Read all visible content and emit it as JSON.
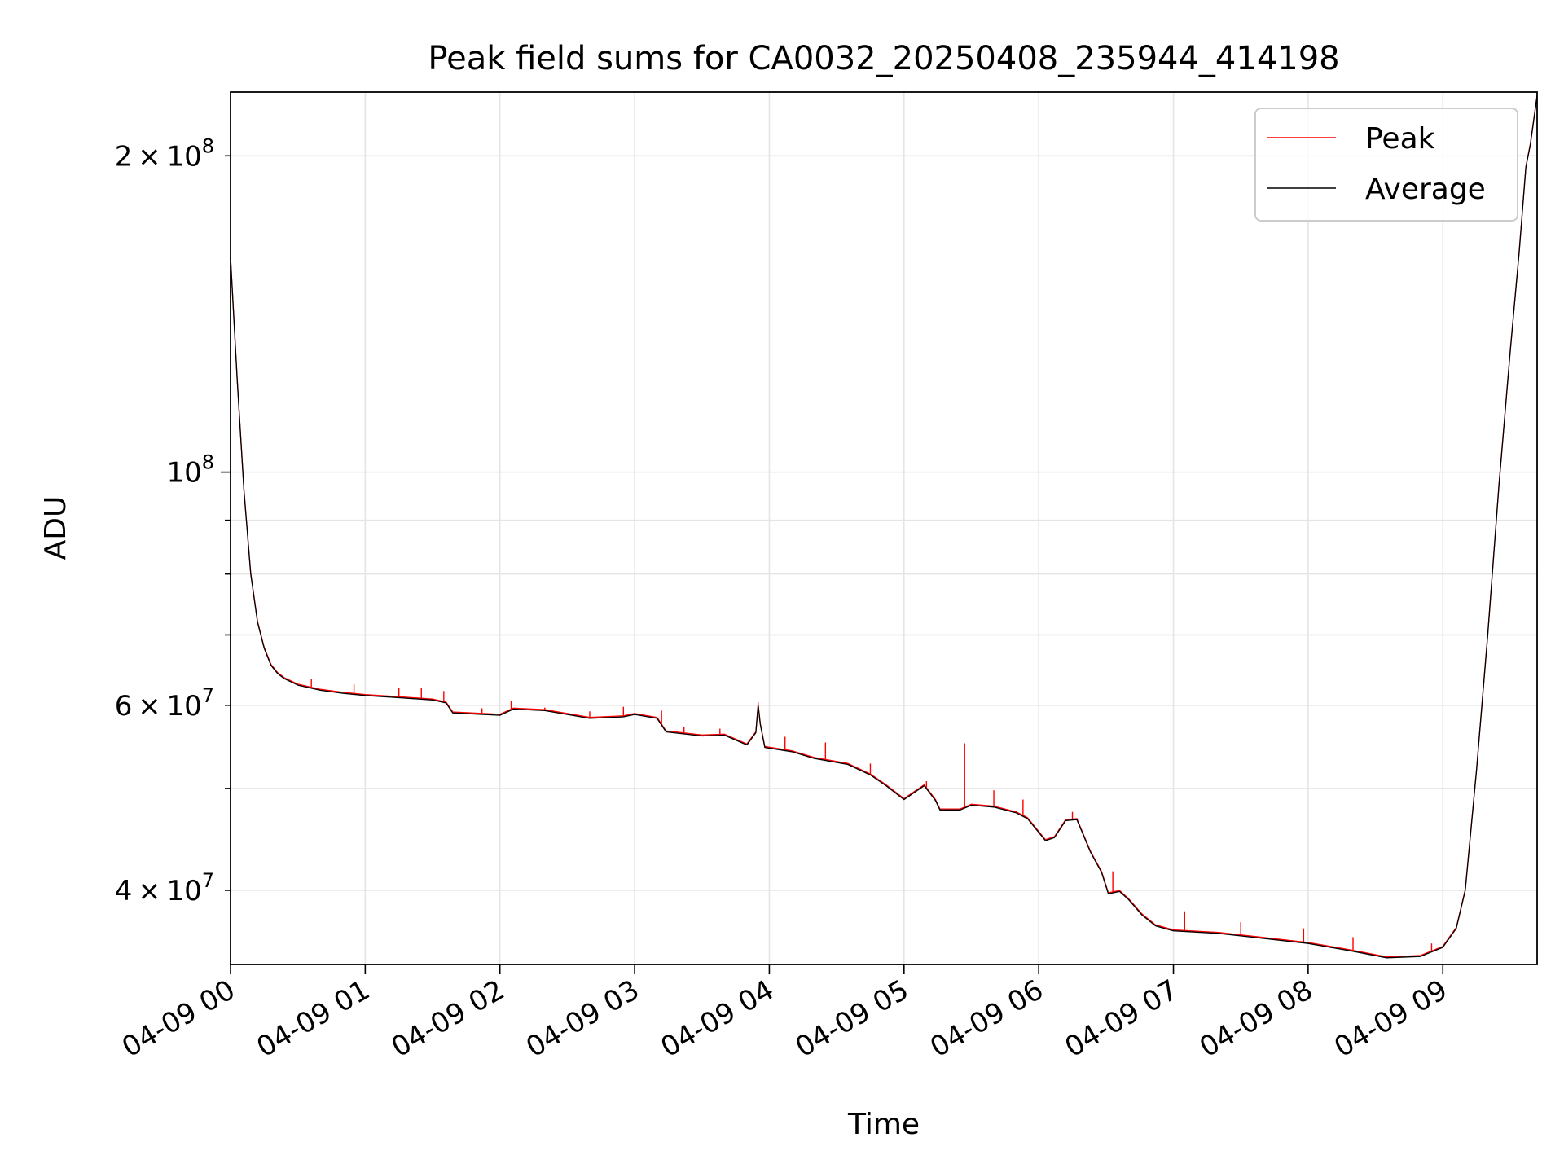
{
  "chart_data": {
    "type": "line",
    "title": "Peak field sums for CA0032_20250408_235944_414198",
    "xlabel": "Time",
    "ylabel": "ADU",
    "x_axis": {
      "type": "datetime",
      "xlim": [
        "2025-04-09T00:00:00",
        "2025-04-09T09:42:00"
      ],
      "ticks": [
        {
          "value": "2025-04-09T00:00:00",
          "label": "04-09 00"
        },
        {
          "value": "2025-04-09T01:00:00",
          "label": "04-09 01"
        },
        {
          "value": "2025-04-09T02:00:00",
          "label": "04-09 02"
        },
        {
          "value": "2025-04-09T03:00:00",
          "label": "04-09 03"
        },
        {
          "value": "2025-04-09T04:00:00",
          "label": "04-09 04"
        },
        {
          "value": "2025-04-09T05:00:00",
          "label": "04-09 05"
        },
        {
          "value": "2025-04-09T06:00:00",
          "label": "04-09 06"
        },
        {
          "value": "2025-04-09T07:00:00",
          "label": "04-09 07"
        },
        {
          "value": "2025-04-09T08:00:00",
          "label": "04-09 08"
        },
        {
          "value": "2025-04-09T09:00:00",
          "label": "04-09 09"
        }
      ]
    },
    "y_axis": {
      "scale": "log",
      "ylim": [
        34000000,
        230000000
      ],
      "major_ticks": [
        {
          "value": 100000000,
          "mant": "",
          "base": "10",
          "exp": "8"
        }
      ],
      "minor_labeled_ticks": [
        {
          "value": 40000000,
          "mant": "4",
          "base": "10",
          "exp": "7"
        },
        {
          "value": 60000000,
          "mant": "6",
          "base": "10",
          "exp": "7"
        },
        {
          "value": 200000000,
          "mant": "2",
          "base": "10",
          "exp": "8"
        }
      ],
      "minor_unlabeled_ticks": [
        50000000,
        70000000,
        80000000,
        90000000
      ]
    },
    "grid": true,
    "legend": {
      "placement": "top-right",
      "entries": [
        {
          "label": "Peak",
          "color": "#ff0000"
        },
        {
          "label": "Average",
          "color": "#000000"
        }
      ]
    },
    "series": [
      {
        "name": "Average",
        "color": "#000000",
        "points": [
          [
            "2025-04-09T00:00:00",
            160000000
          ],
          [
            "2025-04-09T00:03:00",
            122000000
          ],
          [
            "2025-04-09T00:06:00",
            96000000
          ],
          [
            "2025-04-09T00:09:00",
            80000000
          ],
          [
            "2025-04-09T00:12:00",
            72000000
          ],
          [
            "2025-04-09T00:15:00",
            68000000
          ],
          [
            "2025-04-09T00:18:00",
            65500000
          ],
          [
            "2025-04-09T00:21:00",
            64300000
          ],
          [
            "2025-04-09T00:24:00",
            63600000
          ],
          [
            "2025-04-09T00:30:00",
            62700000
          ],
          [
            "2025-04-09T00:40:00",
            62000000
          ],
          [
            "2025-04-09T00:50:00",
            61600000
          ],
          [
            "2025-04-09T01:00:00",
            61300000
          ],
          [
            "2025-04-09T01:15:00",
            61000000
          ],
          [
            "2025-04-09T01:30:00",
            60700000
          ],
          [
            "2025-04-09T01:36:00",
            60300000
          ],
          [
            "2025-04-09T01:39:00",
            59000000
          ],
          [
            "2025-04-09T02:00:00",
            58700000
          ],
          [
            "2025-04-09T02:06:00",
            59500000
          ],
          [
            "2025-04-09T02:20:00",
            59300000
          ],
          [
            "2025-04-09T02:40:00",
            58300000
          ],
          [
            "2025-04-09T02:55:00",
            58500000
          ],
          [
            "2025-04-09T03:00:00",
            58800000
          ],
          [
            "2025-04-09T03:10:00",
            58300000
          ],
          [
            "2025-04-09T03:14:00",
            56600000
          ],
          [
            "2025-04-09T03:30:00",
            56100000
          ],
          [
            "2025-04-09T03:40:00",
            56200000
          ],
          [
            "2025-04-09T03:50:00",
            55000000
          ],
          [
            "2025-04-09T03:54:00",
            56500000
          ],
          [
            "2025-04-09T03:55:00",
            60000000
          ],
          [
            "2025-04-09T03:56:00",
            57500000
          ],
          [
            "2025-04-09T03:58:00",
            54700000
          ],
          [
            "2025-04-09T04:10:00",
            54200000
          ],
          [
            "2025-04-09T04:20:00",
            53400000
          ],
          [
            "2025-04-09T04:35:00",
            52700000
          ],
          [
            "2025-04-09T04:45:00",
            51500000
          ],
          [
            "2025-04-09T04:52:00",
            50300000
          ],
          [
            "2025-04-09T05:00:00",
            48800000
          ],
          [
            "2025-04-09T05:06:00",
            49800000
          ],
          [
            "2025-04-09T05:09:00",
            50300000
          ],
          [
            "2025-04-09T05:14:00",
            48700000
          ],
          [
            "2025-04-09T05:16:00",
            47700000
          ],
          [
            "2025-04-09T05:25:00",
            47700000
          ],
          [
            "2025-04-09T05:30:00",
            48200000
          ],
          [
            "2025-04-09T05:40:00",
            48000000
          ],
          [
            "2025-04-09T05:50:00",
            47400000
          ],
          [
            "2025-04-09T05:55:00",
            46800000
          ],
          [
            "2025-04-09T06:03:00",
            44600000
          ],
          [
            "2025-04-09T06:07:00",
            44900000
          ],
          [
            "2025-04-09T06:12:00",
            46600000
          ],
          [
            "2025-04-09T06:17:00",
            46700000
          ],
          [
            "2025-04-09T06:23:00",
            43500000
          ],
          [
            "2025-04-09T06:28:00",
            41600000
          ],
          [
            "2025-04-09T06:31:00",
            39700000
          ],
          [
            "2025-04-09T06:36:00",
            39900000
          ],
          [
            "2025-04-09T06:40:00",
            39200000
          ],
          [
            "2025-04-09T06:46:00",
            37900000
          ],
          [
            "2025-04-09T06:52:00",
            37000000
          ],
          [
            "2025-04-09T07:00:00",
            36600000
          ],
          [
            "2025-04-09T07:20:00",
            36400000
          ],
          [
            "2025-04-09T07:40:00",
            36000000
          ],
          [
            "2025-04-09T08:00:00",
            35600000
          ],
          [
            "2025-04-09T08:20:00",
            35000000
          ],
          [
            "2025-04-09T08:35:00",
            34500000
          ],
          [
            "2025-04-09T08:50:00",
            34600000
          ],
          [
            "2025-04-09T09:00:00",
            35300000
          ],
          [
            "2025-04-09T09:06:00",
            36800000
          ],
          [
            "2025-04-09T09:10:00",
            40000000
          ],
          [
            "2025-04-09T09:15:00",
            52000000
          ],
          [
            "2025-04-09T09:20:00",
            70000000
          ],
          [
            "2025-04-09T09:25:00",
            97000000
          ],
          [
            "2025-04-09T09:30:00",
            130000000
          ],
          [
            "2025-04-09T09:34:00",
            162000000
          ],
          [
            "2025-04-09T09:37:00",
            195000000
          ],
          [
            "2025-04-09T09:39:00",
            205000000
          ],
          [
            "2025-04-09T09:42:00",
            228000000
          ]
        ]
      },
      {
        "name": "Peak",
        "color": "#ff0000",
        "note_style": "follows Average with narrow upward spikes",
        "spikes": [
          [
            "2025-04-09T00:36:00",
            63500000
          ],
          [
            "2025-04-09T00:55:00",
            62800000
          ],
          [
            "2025-04-09T01:15:00",
            62300000
          ],
          [
            "2025-04-09T01:25:00",
            62300000
          ],
          [
            "2025-04-09T01:35:00",
            61900000
          ],
          [
            "2025-04-09T01:52:00",
            59600000
          ],
          [
            "2025-04-09T02:05:00",
            60600000
          ],
          [
            "2025-04-09T02:20:00",
            59700000
          ],
          [
            "2025-04-09T02:40:00",
            59200000
          ],
          [
            "2025-04-09T02:55:00",
            59800000
          ],
          [
            "2025-04-09T03:12:00",
            59300000
          ],
          [
            "2025-04-09T03:22:00",
            57200000
          ],
          [
            "2025-04-09T03:38:00",
            57000000
          ],
          [
            "2025-04-09T03:55:00",
            60400000
          ],
          [
            "2025-04-09T04:07:00",
            56000000
          ],
          [
            "2025-04-09T04:25:00",
            55300000
          ],
          [
            "2025-04-09T04:45:00",
            52800000
          ],
          [
            "2025-04-09T05:10:00",
            50800000
          ],
          [
            "2025-04-09T05:27:00",
            55200000
          ],
          [
            "2025-04-09T05:40:00",
            49800000
          ],
          [
            "2025-04-09T05:53:00",
            48800000
          ],
          [
            "2025-04-09T06:15:00",
            47500000
          ],
          [
            "2025-04-09T06:33:00",
            41700000
          ],
          [
            "2025-04-09T07:05:00",
            38200000
          ],
          [
            "2025-04-09T07:30:00",
            37300000
          ],
          [
            "2025-04-09T07:58:00",
            36800000
          ],
          [
            "2025-04-09T08:20:00",
            36100000
          ],
          [
            "2025-04-09T08:55:00",
            35600000
          ]
        ]
      }
    ]
  }
}
